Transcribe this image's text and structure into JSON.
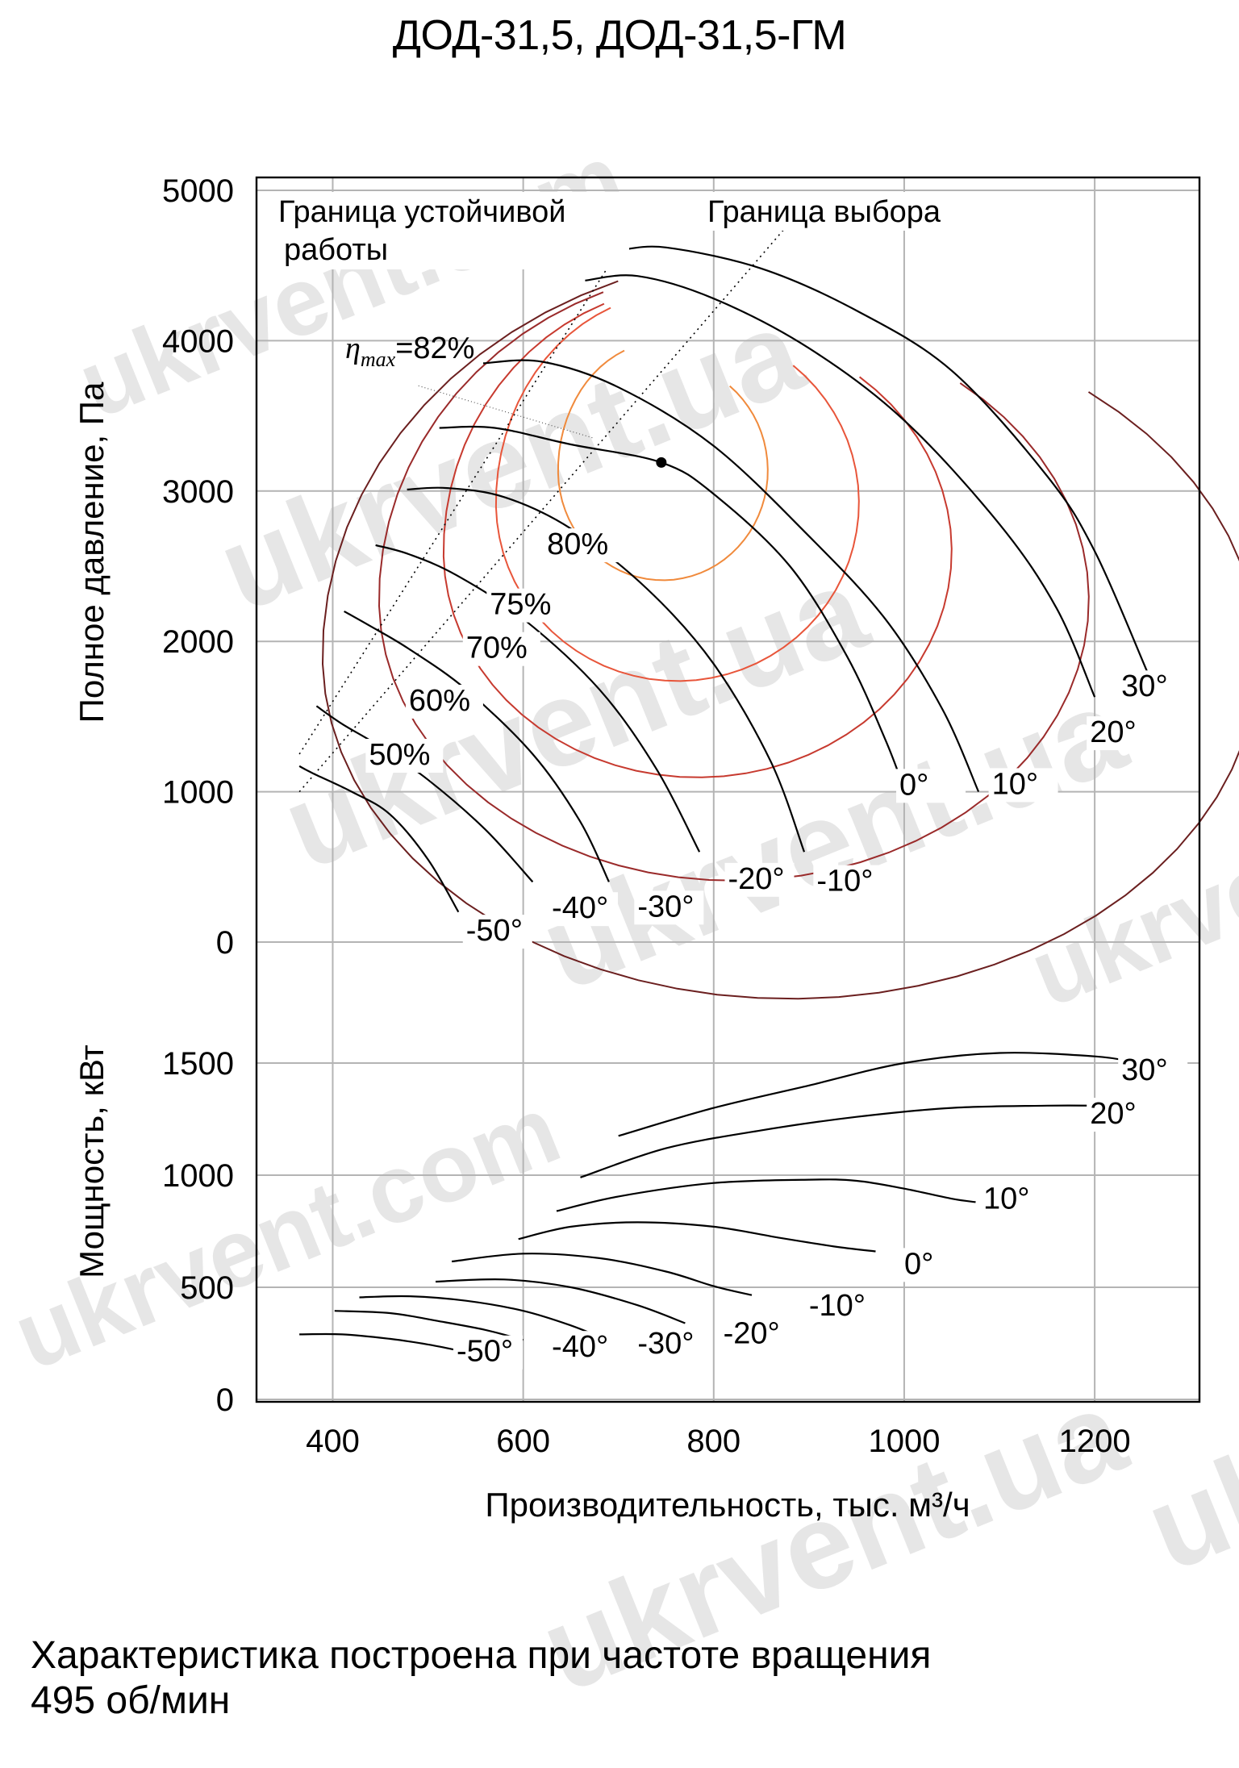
{
  "page": {
    "title": "ДОД-31,5, ДОД-31,5-ГМ",
    "footer_line1": "Характеристика построена при частоте вращения",
    "footer_line2": "495 об/мин",
    "watermark": "ukrvent.ua",
    "watermark_com": "ukrvent.com"
  },
  "colors": {
    "curve": "#000000",
    "grid": "#b4b4b4",
    "eta_80": "#f08a3c",
    "eta_75": "#e8553a",
    "eta_70": "#c73a2f",
    "eta_60": "#9a2a2a",
    "eta_50": "#6b1f1f",
    "point": "#000000"
  },
  "chart_data": [
    {
      "type": "line",
      "panel": "pressure",
      "xlabel": "Производительность, тыс. м³/ч",
      "ylabel": "Полное давление, Па",
      "xlim": [
        320,
        1310
      ],
      "ylim": [
        0,
        5000
      ],
      "xticks": [
        400,
        600,
        800,
        1000,
        1200
      ],
      "yticks": [
        0,
        1000,
        2000,
        3000,
        4000,
        5000
      ],
      "grid": true,
      "annotations": {
        "stability_boundary": "Граница устойчивой\nработы",
        "selection_boundary": "Граница выбора",
        "eta_max": "=82%",
        "eta_symbol": "η",
        "eta_sub": "max"
      },
      "optimum_point": {
        "x": 745,
        "y": 3190
      },
      "series": [
        {
          "name": "30°",
          "label_at": [
            1228,
            1635
          ],
          "points": [
            [
              700,
              4600
            ],
            [
              750,
              4620
            ],
            [
              850,
              4480
            ],
            [
              950,
              4200
            ],
            [
              1050,
              3800
            ],
            [
              1150,
              3100
            ],
            [
              1200,
              2600
            ],
            [
              1255,
              1800
            ]
          ]
        },
        {
          "name": "20°",
          "label_at": [
            1195,
            1330
          ],
          "points": [
            [
              665,
              4400
            ],
            [
              720,
              4430
            ],
            [
              800,
              4280
            ],
            [
              900,
              3950
            ],
            [
              1000,
              3470
            ],
            [
              1100,
              2780
            ],
            [
              1160,
              2220
            ],
            [
              1200,
              1630
            ]
          ]
        },
        {
          "name": "10°",
          "label_at": [
            1092,
            985
          ],
          "points": [
            [
              558,
              3850
            ],
            [
              620,
              3860
            ],
            [
              700,
              3690
            ],
            [
              800,
              3300
            ],
            [
              900,
              2700
            ],
            [
              980,
              2150
            ],
            [
              1040,
              1550
            ],
            [
              1078,
              1000
            ]
          ]
        },
        {
          "name": "0°",
          "label_at": [
            995,
            980
          ],
          "points": [
            [
              512,
              3420
            ],
            [
              570,
              3420
            ],
            [
              650,
              3310
            ],
            [
              745,
              3190
            ],
            [
              800,
              2980
            ],
            [
              880,
              2500
            ],
            [
              940,
              1900
            ],
            [
              980,
              1350
            ],
            [
              1000,
              1020
            ]
          ]
        },
        {
          "name": "-10°",
          "label_at": [
            908,
            340
          ],
          "points": [
            [
              478,
              3010
            ],
            [
              520,
              3020
            ],
            [
              580,
              2960
            ],
            [
              650,
              2750
            ],
            [
              730,
              2350
            ],
            [
              800,
              1850
            ],
            [
              860,
              1200
            ],
            [
              895,
              600
            ]
          ]
        },
        {
          "name": "-20°",
          "label_at": [
            815,
            355
          ],
          "points": [
            [
              445,
              2640
            ],
            [
              480,
              2580
            ],
            [
              530,
              2440
            ],
            [
              600,
              2150
            ],
            [
              680,
              1680
            ],
            [
              740,
              1150
            ],
            [
              785,
              600
            ]
          ]
        },
        {
          "name": "-30°",
          "label_at": [
            720,
            170
          ],
          "points": [
            [
              412,
              2200
            ],
            [
              440,
              2100
            ],
            [
              480,
              1950
            ],
            [
              540,
              1680
            ],
            [
              610,
              1250
            ],
            [
              660,
              800
            ],
            [
              690,
              400
            ]
          ]
        },
        {
          "name": "-40°",
          "label_at": [
            630,
            160
          ],
          "points": [
            [
              383,
              1570
            ],
            [
              410,
              1450
            ],
            [
              450,
              1300
            ],
            [
              500,
              1080
            ],
            [
              560,
              750
            ],
            [
              610,
              400
            ]
          ]
        },
        {
          "name": "-50°",
          "label_at": [
            540,
            10
          ],
          "points": [
            [
              365,
              1170
            ],
            [
              380,
              1120
            ],
            [
              420,
              1000
            ],
            [
              460,
              850
            ],
            [
              500,
              550
            ],
            [
              532,
              200
            ]
          ]
        }
      ],
      "efficiency_contours": [
        {
          "name": "80%",
          "label_at": [
            625,
            2580
          ]
        },
        {
          "name": "75%",
          "label_at": [
            565,
            2180
          ]
        },
        {
          "name": "70%",
          "label_at": [
            540,
            1890
          ]
        },
        {
          "name": "60%",
          "label_at": [
            480,
            1540
          ]
        },
        {
          "name": "50%",
          "label_at": [
            438,
            1180
          ]
        }
      ]
    },
    {
      "type": "line",
      "panel": "power",
      "ylabel": "Мощность, кВт",
      "xlim": [
        320,
        1310
      ],
      "ylim": [
        0,
        1800
      ],
      "yticks": [
        0,
        500,
        1000,
        1500
      ],
      "grid": true,
      "series": [
        {
          "name": "30°",
          "label_at": [
            1228,
            1425
          ],
          "points": [
            [
              700,
              1175
            ],
            [
              800,
              1300
            ],
            [
              900,
              1400
            ],
            [
              1000,
              1500
            ],
            [
              1100,
              1545
            ],
            [
              1200,
              1530
            ],
            [
              1240,
              1505
            ]
          ]
        },
        {
          "name": "20°",
          "label_at": [
            1195,
            1230
          ],
          "points": [
            [
              660,
              990
            ],
            [
              750,
              1120
            ],
            [
              850,
              1200
            ],
            [
              950,
              1260
            ],
            [
              1050,
              1300
            ],
            [
              1150,
              1310
            ],
            [
              1200,
              1310
            ]
          ]
        },
        {
          "name": "10°",
          "label_at": [
            1083,
            850
          ],
          "points": [
            [
              635,
              840
            ],
            [
              700,
              905
            ],
            [
              800,
              965
            ],
            [
              900,
              980
            ],
            [
              950,
              975
            ],
            [
              1000,
              940
            ],
            [
              1050,
              895
            ],
            [
              1075,
              880
            ]
          ]
        },
        {
          "name": "0°",
          "label_at": [
            1000,
            560
          ],
          "points": [
            [
              595,
              715
            ],
            [
              650,
              770
            ],
            [
              720,
              790
            ],
            [
              800,
              770
            ],
            [
              870,
              720
            ],
            [
              930,
              680
            ],
            [
              970,
              660
            ]
          ]
        },
        {
          "name": "-10°",
          "label_at": [
            900,
            375
          ],
          "points": [
            [
              525,
              615
            ],
            [
              600,
              650
            ],
            [
              680,
              630
            ],
            [
              750,
              570
            ],
            [
              800,
              505
            ],
            [
              840,
              465
            ]
          ]
        },
        {
          "name": "-20°",
          "label_at": [
            810,
            250
          ],
          "points": [
            [
              508,
              525
            ],
            [
              580,
              535
            ],
            [
              650,
              500
            ],
            [
              720,
              420
            ],
            [
              770,
              340
            ]
          ]
        },
        {
          "name": "-30°",
          "label_at": [
            720,
            205
          ],
          "points": [
            [
              428,
              455
            ],
            [
              480,
              460
            ],
            [
              540,
              440
            ],
            [
              600,
              395
            ],
            [
              650,
              330
            ],
            [
              685,
              270
            ]
          ]
        },
        {
          "name": "-40°",
          "label_at": [
            630,
            190
          ],
          "points": [
            [
              402,
              395
            ],
            [
              460,
              385
            ],
            [
              510,
              350
            ],
            [
              560,
              310
            ],
            [
              600,
              265
            ]
          ]
        },
        {
          "name": "-50°",
          "label_at": [
            530,
            170
          ],
          "points": [
            [
              365,
              290
            ],
            [
              410,
              290
            ],
            [
              460,
              270
            ],
            [
              500,
              245
            ],
            [
              530,
              220
            ]
          ]
        }
      ]
    }
  ]
}
